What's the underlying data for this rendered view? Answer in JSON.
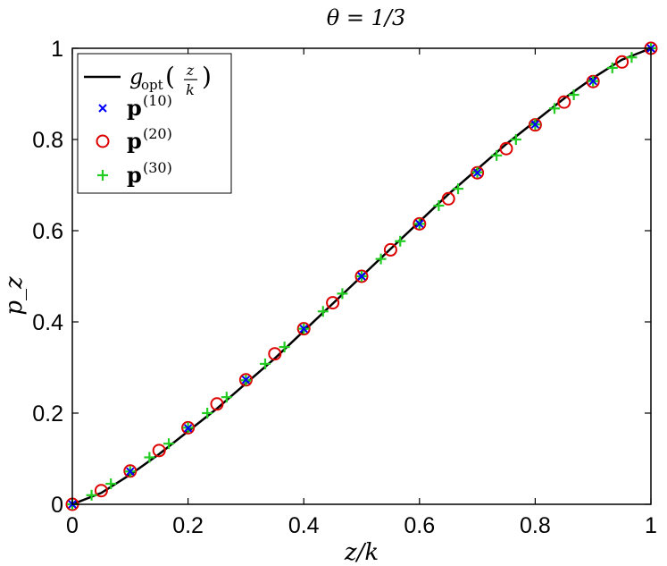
{
  "chart_data": {
    "type": "scatter",
    "title": "θ = 1/3",
    "xlabel": "z/k",
    "ylabel": "p_z",
    "xlim": [
      0,
      1
    ],
    "ylim": [
      0,
      1
    ],
    "grid": false,
    "legend_position": "top-left",
    "x_ticks": [
      "0",
      "0.2",
      "0.4",
      "0.6",
      "0.8",
      "1"
    ],
    "y_ticks": [
      "0",
      "0.2",
      "0.4",
      "0.6",
      "0.8",
      "1"
    ],
    "series": [
      {
        "name": "g_opt(z/k)",
        "kind": "line",
        "color": "#000000",
        "x": [
          0,
          0.05,
          0.1,
          0.15,
          0.2,
          0.25,
          0.3,
          0.35,
          0.4,
          0.45,
          0.5,
          0.55,
          0.6,
          0.65,
          0.7,
          0.75,
          0.8,
          0.85,
          0.9,
          0.95,
          1
        ],
        "y": [
          0,
          0.025,
          0.065,
          0.11,
          0.16,
          0.21,
          0.265,
          0.32,
          0.38,
          0.44,
          0.5,
          0.56,
          0.62,
          0.68,
          0.735,
          0.79,
          0.84,
          0.89,
          0.935,
          0.975,
          1
        ]
      },
      {
        "name": "p(10)",
        "kind": "marker",
        "marker": "x",
        "color": "#0000ff",
        "x": [
          0,
          0.1,
          0.2,
          0.3,
          0.4,
          0.5,
          0.6,
          0.7,
          0.8,
          0.9,
          1
        ],
        "y": [
          0,
          0.072,
          0.167,
          0.273,
          0.385,
          0.5,
          0.615,
          0.727,
          0.833,
          0.928,
          1
        ]
      },
      {
        "name": "p(20)",
        "kind": "marker",
        "marker": "o",
        "color": "#dd0000",
        "x": [
          0,
          0.05,
          0.1,
          0.15,
          0.2,
          0.25,
          0.3,
          0.35,
          0.4,
          0.45,
          0.5,
          0.55,
          0.6,
          0.65,
          0.7,
          0.75,
          0.8,
          0.85,
          0.9,
          0.95,
          1
        ],
        "y": [
          0,
          0.03,
          0.073,
          0.118,
          0.168,
          0.22,
          0.273,
          0.33,
          0.385,
          0.442,
          0.5,
          0.558,
          0.615,
          0.67,
          0.727,
          0.78,
          0.832,
          0.882,
          0.927,
          0.97,
          1
        ]
      },
      {
        "name": "p(30)",
        "kind": "marker",
        "marker": "+",
        "color": "#22cc22",
        "x": [
          0,
          0.0333,
          0.0667,
          0.1,
          0.1333,
          0.1667,
          0.2,
          0.2333,
          0.2667,
          0.3,
          0.3333,
          0.3667,
          0.4,
          0.4333,
          0.4667,
          0.5,
          0.5333,
          0.5667,
          0.6,
          0.6333,
          0.6667,
          0.7,
          0.7333,
          0.7667,
          0.8,
          0.8333,
          0.8667,
          0.9,
          0.9333,
          0.9667,
          1
        ],
        "y": [
          0,
          0.02,
          0.045,
          0.072,
          0.103,
          0.133,
          0.168,
          0.2,
          0.235,
          0.272,
          0.308,
          0.345,
          0.385,
          0.423,
          0.462,
          0.5,
          0.538,
          0.577,
          0.615,
          0.655,
          0.692,
          0.728,
          0.765,
          0.8,
          0.833,
          0.868,
          0.898,
          0.928,
          0.957,
          0.98,
          1
        ]
      }
    ]
  }
}
